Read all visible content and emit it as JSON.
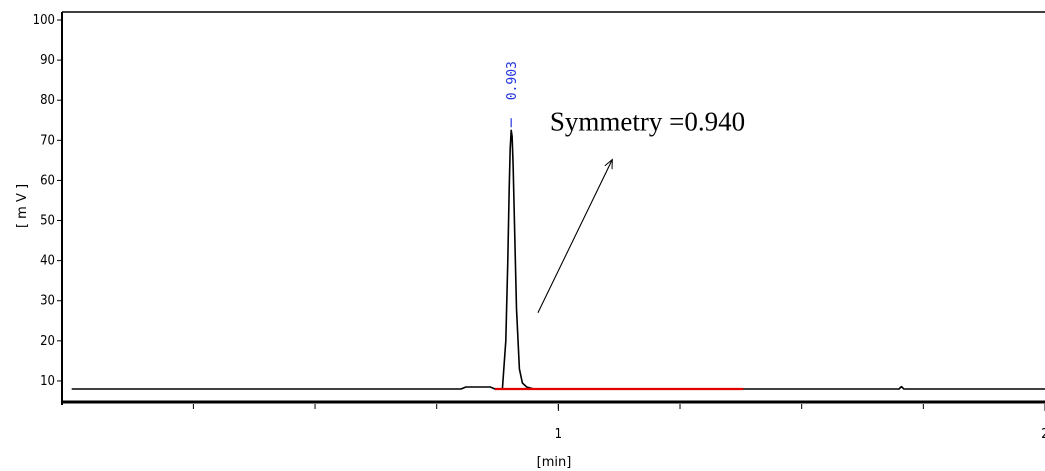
{
  "chart_data": {
    "type": "line",
    "ylabel": "[ m V ]",
    "xlabel": "[min]",
    "ylim": [
      5,
      102
    ],
    "xlim": [
      -0.02,
      2.0
    ],
    "y_ticks": [
      10,
      20,
      30,
      40,
      50,
      60,
      70,
      80,
      90,
      100
    ],
    "x_tick_labels": [
      {
        "value": 1,
        "label": "1"
      },
      {
        "value": 2,
        "label": "2"
      }
    ],
    "x_minor_ticks": [
      0.25,
      0.5,
      0.75,
      1.0,
      1.25,
      1.5,
      1.75
    ],
    "series": [
      {
        "color": "#000000",
        "x": [
          0.0,
          0.8,
          0.81,
          0.86,
          0.87,
          0.885,
          0.892,
          0.896,
          0.899,
          0.901,
          0.903,
          0.905,
          0.907,
          0.91,
          0.914,
          0.92,
          0.926,
          0.935,
          0.95,
          1.7,
          1.705,
          1.71,
          2.0
        ],
        "y": [
          8,
          8,
          8.5,
          8.5,
          8,
          8,
          20,
          40,
          58,
          68,
          72.5,
          71,
          64,
          48,
          28,
          13,
          9.5,
          8.5,
          8,
          8,
          8.6,
          8,
          8
        ]
      }
    ],
    "baseline": {
      "color": "#e00000",
      "x_start": 0.87,
      "x_end": 1.38,
      "y": 8
    },
    "peaks": [
      {
        "x": 0.903,
        "label": "0.903",
        "color": "#2233dd",
        "marker_top": 75.5
      }
    ],
    "annotation": {
      "text": "Symmetry =0.940",
      "arrow_from": {
        "x": 0.958,
        "y": 27
      },
      "arrow_to": {
        "x": 1.11,
        "y": 65
      }
    }
  }
}
